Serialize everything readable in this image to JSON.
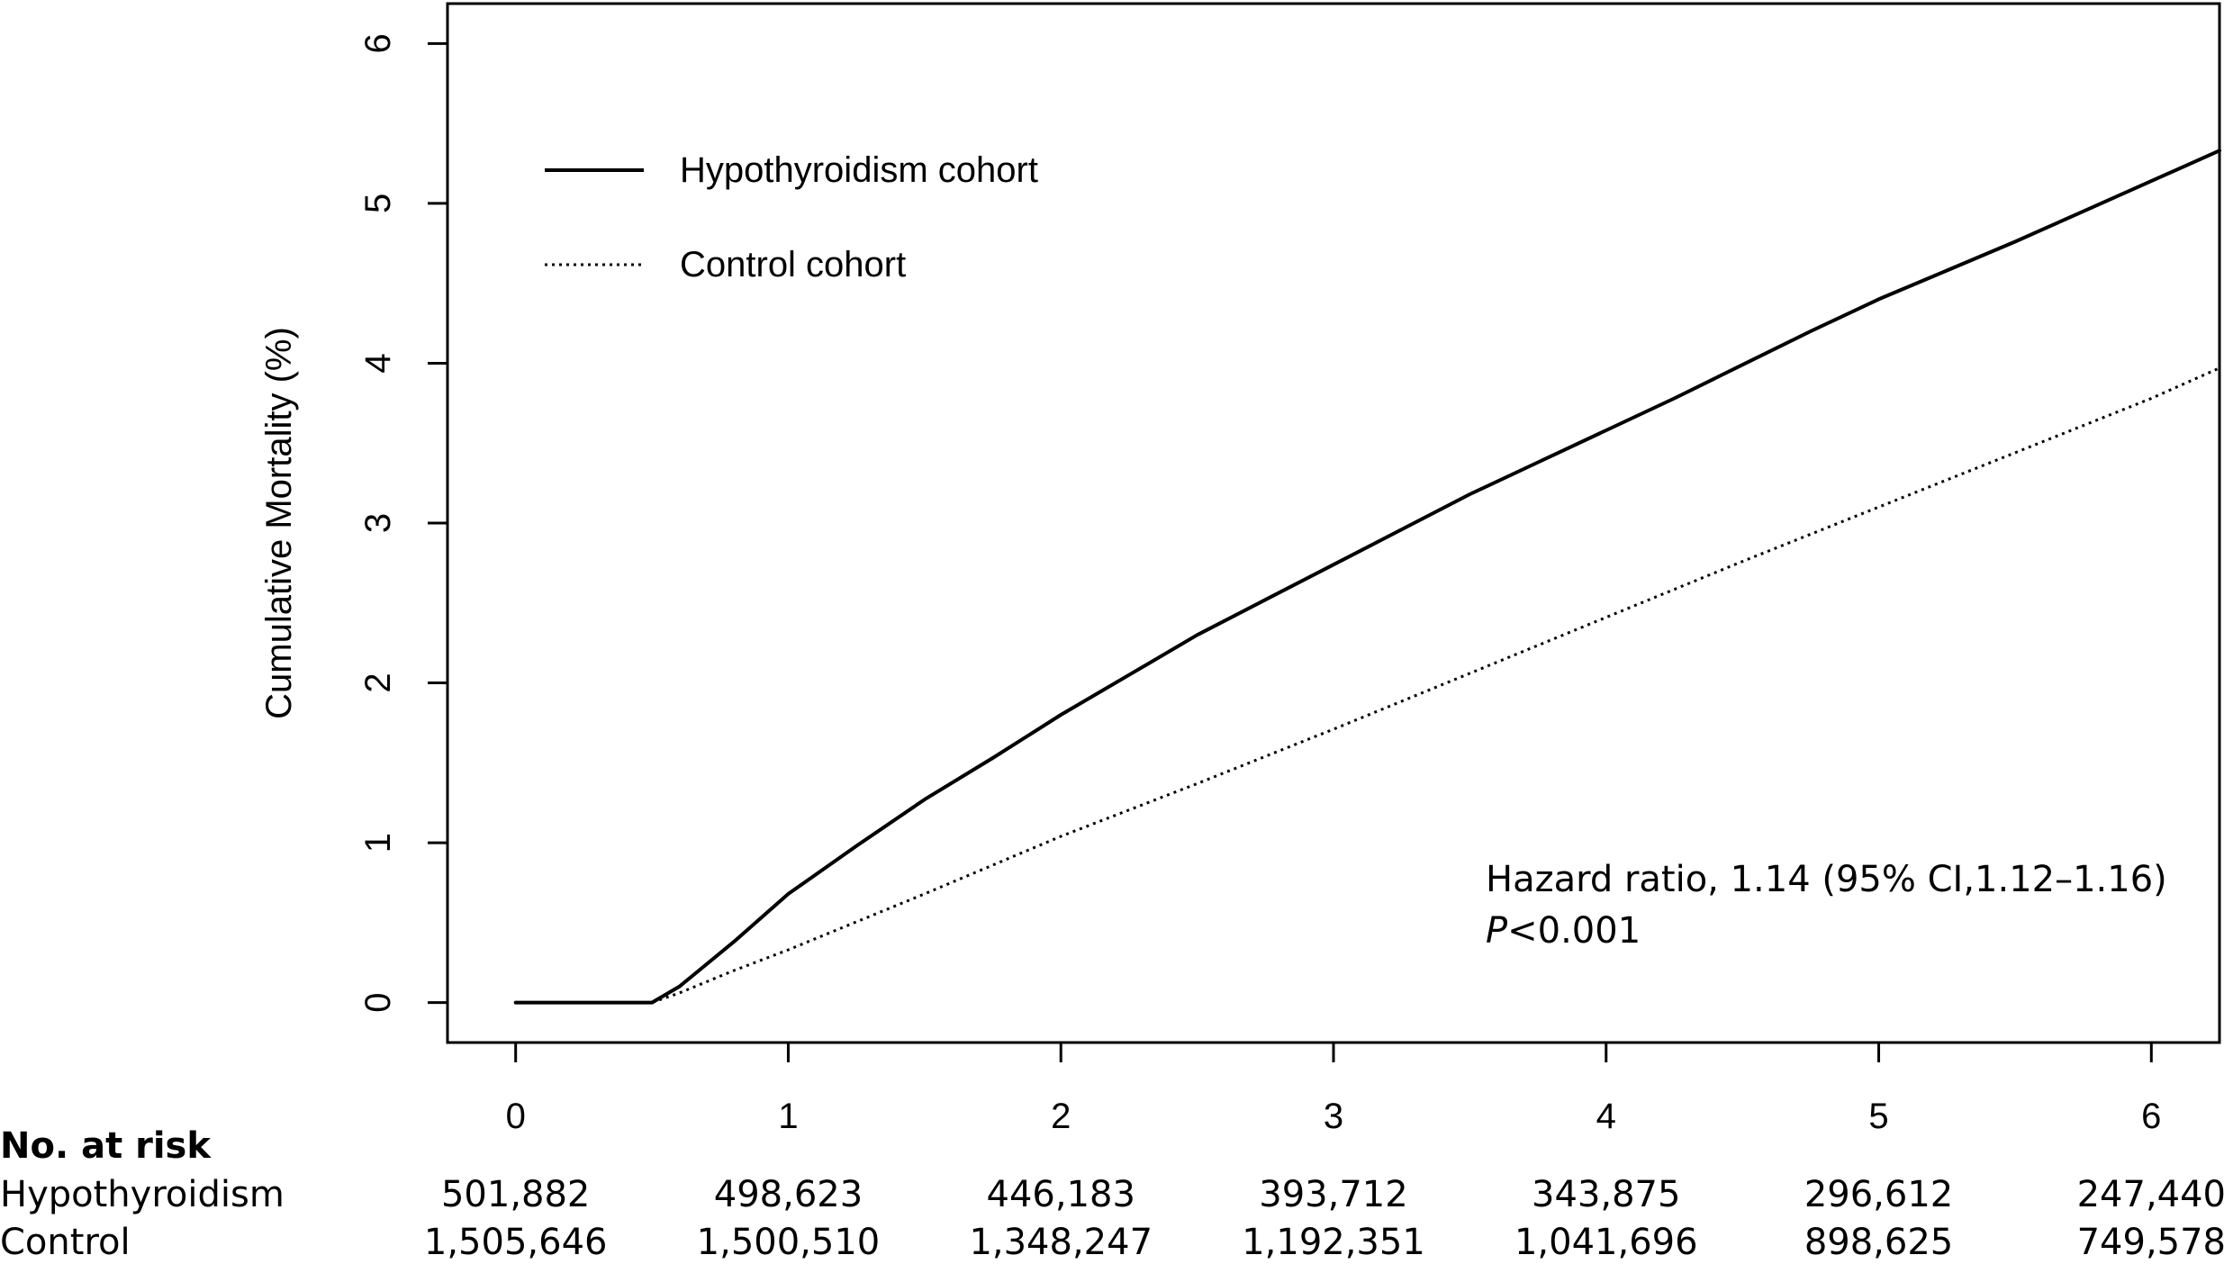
{
  "chart_data": {
    "type": "line",
    "title": "",
    "xlabel": "",
    "ylabel": "Cumulative Mortality (%)",
    "xlim": [
      -0.25,
      6.25
    ],
    "ylim": [
      -0.25,
      6.25
    ],
    "x_ticks": [
      "0",
      "1",
      "2",
      "3",
      "4",
      "5",
      "6"
    ],
    "y_ticks": [
      "0",
      "1",
      "2",
      "3",
      "4",
      "5",
      "6"
    ],
    "grid": false,
    "legend_position": "top-left",
    "series": [
      {
        "name": "Hypothyroidism cohort",
        "line_style": "solid",
        "x": [
          0,
          0.5,
          0.6,
          0.8,
          1.0,
          1.25,
          1.5,
          1.75,
          2.0,
          2.25,
          2.5,
          2.75,
          3.0,
          3.25,
          3.5,
          3.75,
          4.0,
          4.25,
          4.5,
          4.75,
          5.0,
          5.25,
          5.5,
          5.75,
          6.0,
          6.25
        ],
        "values": [
          0,
          0,
          0.1,
          0.38,
          0.68,
          0.98,
          1.27,
          1.53,
          1.8,
          2.05,
          2.3,
          2.52,
          2.74,
          2.96,
          3.18,
          3.38,
          3.58,
          3.78,
          3.99,
          4.2,
          4.4,
          4.58,
          4.76,
          4.95,
          5.14,
          5.33
        ]
      },
      {
        "name": "Control cohort",
        "line_style": "dotted",
        "x": [
          0,
          0.5,
          0.6,
          0.8,
          1.0,
          1.5,
          2.0,
          2.5,
          3.0,
          3.5,
          4.0,
          4.5,
          5.0,
          5.5,
          6.0,
          6.25
        ],
        "values": [
          0,
          0,
          0.06,
          0.2,
          0.33,
          0.68,
          1.04,
          1.37,
          1.71,
          2.06,
          2.41,
          2.76,
          3.1,
          3.44,
          3.78,
          3.97
        ]
      }
    ],
    "annotation": {
      "hazard_ratio": "Hazard ratio, 1.14  (95% CI,1.12–1.16)",
      "p_italic": "P",
      "p_rest": "<0.001"
    },
    "risk_table": {
      "header": "No. at risk",
      "rows": [
        {
          "label": "Hypothyroidism",
          "values": [
            "501,882",
            "498,623",
            "446,183",
            "393,712",
            "343,875",
            "296,612",
            "247,440"
          ]
        },
        {
          "label": "Control",
          "values": [
            "1,505,646",
            "1,500,510",
            "1,348,247",
            "1,192,351",
            "1,041,696",
            "898,625",
            "749,578"
          ]
        }
      ]
    },
    "colors": {
      "line": "#000000",
      "axis": "#000000",
      "background": "#ffffff"
    }
  }
}
